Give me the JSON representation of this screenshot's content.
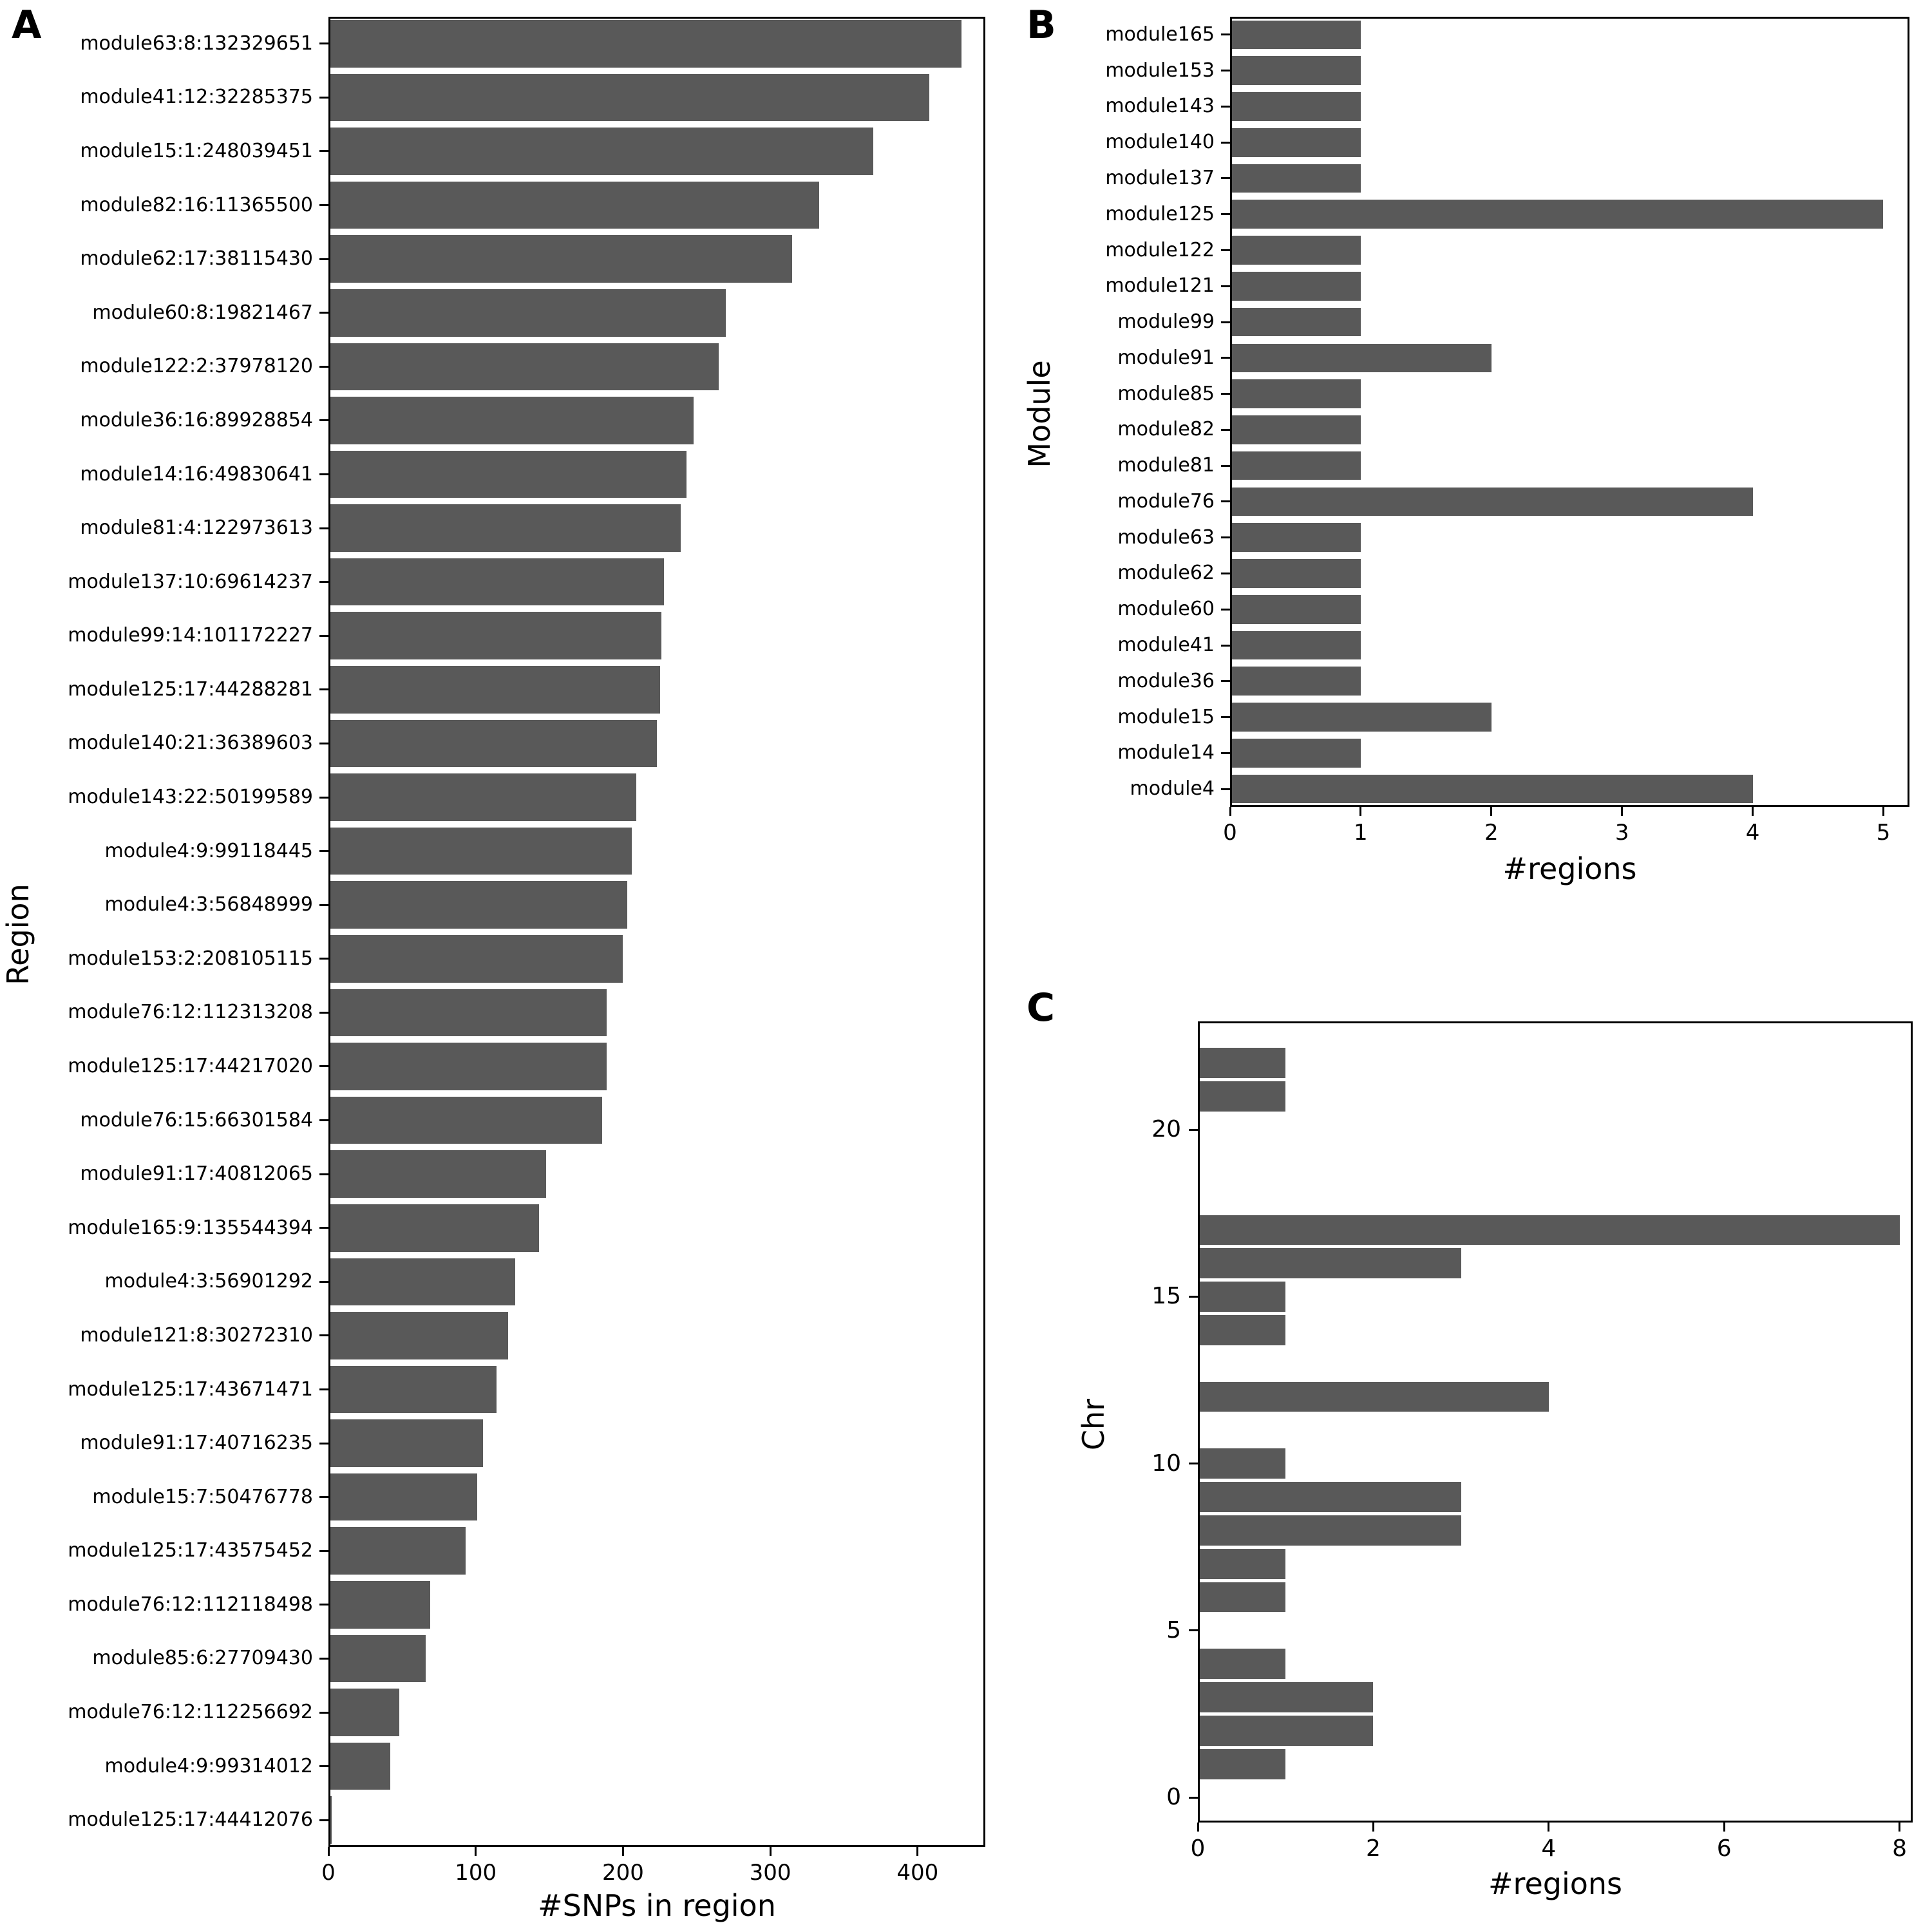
{
  "figure": {
    "background": "#ffffff",
    "bar_color": "#595959",
    "axis_color": "#000000",
    "text_color": "#000000"
  },
  "chart_data": [
    {
      "panel_label": "A",
      "type": "bar",
      "orientation": "horizontal",
      "title": "",
      "xlabel": "#SNPs in region",
      "ylabel": "Region",
      "xlim": [
        0,
        446
      ],
      "x_ticks": [
        0,
        100,
        200,
        300,
        400
      ],
      "grid": false,
      "legend": false,
      "categories": [
        "module63:8:132329651",
        "module41:12:32285375",
        "module15:1:248039451",
        "module82:16:11365500",
        "module62:17:38115430",
        "module60:8:19821467",
        "module122:2:37978120",
        "module36:16:89928854",
        "module14:16:49830641",
        "module81:4:122973613",
        "module137:10:69614237",
        "module99:14:101172227",
        "module125:17:44288281",
        "module140:21:36389603",
        "module143:22:50199589",
        "module4:9:99118445",
        "module4:3:56848999",
        "module153:2:208105115",
        "module76:12:112313208",
        "module125:17:44217020",
        "module76:15:66301584",
        "module91:17:40812065",
        "module165:9:135544394",
        "module4:3:56901292",
        "module121:8:30272310",
        "module125:17:43671471",
        "module91:17:40716235",
        "module15:7:50476778",
        "module125:17:43575452",
        "module76:12:112118498",
        "module85:6:27709430",
        "module76:12:112256692",
        "module4:9:99314012",
        "module125:17:44412076"
      ],
      "values": [
        430,
        408,
        370,
        333,
        315,
        270,
        265,
        248,
        243,
        239,
        228,
        226,
        225,
        223,
        209,
        206,
        203,
        200,
        189,
        189,
        186,
        148,
        143,
        127,
        122,
        114,
        105,
        101,
        93,
        69,
        66,
        48,
        42,
        2
      ]
    },
    {
      "panel_label": "B",
      "type": "bar",
      "orientation": "horizontal",
      "title": "",
      "xlabel": "#regions",
      "ylabel": "Module",
      "xlim": [
        0,
        5.2
      ],
      "x_ticks": [
        0,
        1,
        2,
        3,
        4,
        5
      ],
      "grid": false,
      "legend": false,
      "categories": [
        "module165",
        "module153",
        "module143",
        "module140",
        "module137",
        "module125",
        "module122",
        "module121",
        "module99",
        "module91",
        "module85",
        "module82",
        "module81",
        "module76",
        "module63",
        "module62",
        "module60",
        "module41",
        "module36",
        "module15",
        "module14",
        "module4"
      ],
      "values": [
        1,
        1,
        1,
        1,
        1,
        5,
        1,
        1,
        1,
        2,
        1,
        1,
        1,
        4,
        1,
        1,
        1,
        1,
        1,
        2,
        1,
        4
      ]
    },
    {
      "panel_label": "C",
      "type": "bar",
      "orientation": "horizontal",
      "title": "",
      "xlabel": "#regions",
      "ylabel": "Chr",
      "xlim": [
        0,
        8.15
      ],
      "x_ticks": [
        0,
        2,
        4,
        6,
        8
      ],
      "ylim": [
        -0.75,
        23.25
      ],
      "y_ticks": [
        0,
        5,
        10,
        15,
        20
      ],
      "grid": false,
      "legend": false,
      "y_positions": [
        22,
        21,
        17,
        16,
        15,
        14,
        12,
        10,
        9,
        8,
        7,
        6,
        4,
        3,
        2,
        1
      ],
      "values": [
        1,
        1,
        8,
        3,
        1,
        1,
        4,
        1,
        3,
        3,
        1,
        1,
        1,
        2,
        2,
        1
      ]
    }
  ]
}
